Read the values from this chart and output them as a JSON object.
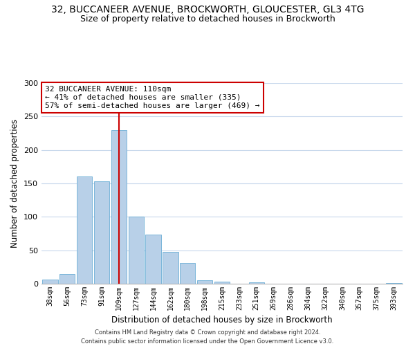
{
  "title_line1": "32, BUCCANEER AVENUE, BROCKWORTH, GLOUCESTER, GL3 4TG",
  "title_line2": "Size of property relative to detached houses in Brockworth",
  "xlabel": "Distribution of detached houses by size in Brockworth",
  "ylabel": "Number of detached properties",
  "bar_labels": [
    "38sqm",
    "56sqm",
    "73sqm",
    "91sqm",
    "109sqm",
    "127sqm",
    "144sqm",
    "162sqm",
    "180sqm",
    "198sqm",
    "215sqm",
    "233sqm",
    "251sqm",
    "269sqm",
    "286sqm",
    "304sqm",
    "322sqm",
    "340sqm",
    "357sqm",
    "375sqm",
    "393sqm"
  ],
  "bar_values": [
    6,
    15,
    160,
    153,
    230,
    100,
    73,
    48,
    31,
    5,
    3,
    0,
    2,
    0,
    0,
    0,
    0,
    0,
    0,
    0,
    1
  ],
  "bar_color": "#b8d0e8",
  "bar_edge_color": "#6baed6",
  "vline_index": 4,
  "property_label": "32 BUCCANEER AVENUE: 110sqm",
  "annotation_line1": "← 41% of detached houses are smaller (335)",
  "annotation_line2": "57% of semi-detached houses are larger (469) →",
  "annotation_box_facecolor": "#ffffff",
  "annotation_box_edgecolor": "#cc0000",
  "vline_color": "#cc0000",
  "ylim": [
    0,
    300
  ],
  "yticks": [
    0,
    50,
    100,
    150,
    200,
    250,
    300
  ],
  "footer_line1": "Contains HM Land Registry data © Crown copyright and database right 2024.",
  "footer_line2": "Contains public sector information licensed under the Open Government Licence v3.0.",
  "bg_color": "#ffffff",
  "grid_color": "#c8d8ec",
  "title_fontsize": 10,
  "subtitle_fontsize": 9,
  "axis_label_fontsize": 8.5,
  "tick_fontsize": 7,
  "annot_fontsize": 8,
  "footer_fontsize": 6
}
